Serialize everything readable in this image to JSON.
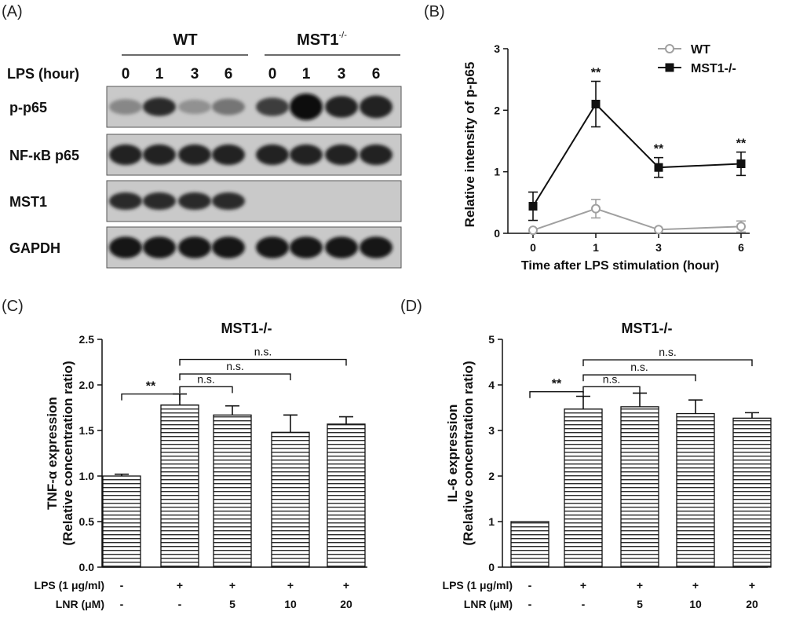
{
  "panel_labels": [
    "(A)",
    "(B)",
    "(C)",
    "(D)"
  ],
  "blot": {
    "groups": [
      "WT",
      "MST1"
    ],
    "group_superscript": "-/-",
    "lps_label": "LPS  (hour)",
    "times": [
      "0",
      "1",
      "3",
      "6",
      "0",
      "1",
      "3",
      "6"
    ],
    "rows": [
      {
        "label": "p-p65",
        "intensity": [
          0.35,
          0.85,
          0.3,
          0.45,
          0.75,
          1.0,
          0.9,
          0.9
        ],
        "height": [
          0.45,
          0.6,
          0.4,
          0.5,
          0.6,
          1.0,
          0.75,
          0.8
        ]
      },
      {
        "label": "NF-κB p65",
        "intensity": [
          0.9,
          0.9,
          0.9,
          0.9,
          0.9,
          0.9,
          0.9,
          0.9
        ],
        "height": [
          0.7,
          0.7,
          0.7,
          0.7,
          0.7,
          0.7,
          0.7,
          0.7
        ]
      },
      {
        "label": "MST1",
        "intensity": [
          0.85,
          0.85,
          0.85,
          0.85,
          0,
          0,
          0,
          0
        ],
        "height": [
          0.55,
          0.55,
          0.55,
          0.55,
          0,
          0,
          0,
          0
        ]
      },
      {
        "label": "GAPDH",
        "intensity": [
          0.95,
          0.95,
          0.95,
          0.95,
          0.95,
          0.95,
          0.95,
          0.95
        ],
        "height": [
          0.75,
          0.75,
          0.75,
          0.75,
          0.75,
          0.75,
          0.75,
          0.75
        ]
      }
    ]
  },
  "chart_data": [
    {
      "panel": "(B)",
      "type": "line",
      "title": "",
      "xlabel": "Time after LPS stimulation (hour)",
      "ylabel": "Relative intensity of p-p65",
      "x": [
        0,
        1,
        3,
        6
      ],
      "xticks": [
        "0",
        "1",
        "3",
        "6"
      ],
      "ylim": [
        0,
        3
      ],
      "yticks": [
        "0",
        "1",
        "2",
        "3"
      ],
      "legend_position": "top-right",
      "series": [
        {
          "name": "WT",
          "values": [
            0.05,
            0.4,
            0.06,
            0.11
          ],
          "errors": [
            0.0,
            0.15,
            0.0,
            0.09
          ],
          "color": "#a0a0a0",
          "marker": "circle-open"
        },
        {
          "name": "MST1-/-",
          "values": [
            0.44,
            2.1,
            1.07,
            1.13
          ],
          "errors": [
            0.23,
            0.37,
            0.16,
            0.19
          ],
          "color": "#111111",
          "marker": "square-filled"
        }
      ],
      "annotations": [
        "**",
        "**",
        "**"
      ],
      "annotation_x": [
        1,
        3,
        6
      ]
    },
    {
      "panel": "(C)",
      "type": "bar",
      "title": "MST1-/-",
      "ylabel": "TNF-α expression",
      "ylabel2": "(Relative concentration ratio)",
      "ylim": [
        0,
        2.5
      ],
      "yticks": [
        "0.0",
        "0.5",
        "1.0",
        "1.5",
        "2.0",
        "2.5"
      ],
      "values": [
        1.0,
        1.78,
        1.67,
        1.48,
        1.57
      ],
      "errors": [
        0.02,
        0.12,
        0.1,
        0.19,
        0.08
      ],
      "row_labels": [
        "LPS (1 μg/ml)",
        "LNR (μM)"
      ],
      "lps": [
        "-",
        "+",
        "+",
        "+",
        "+"
      ],
      "lnr": [
        "-",
        "-",
        "5",
        "10",
        "20"
      ],
      "brackets": [
        {
          "from": 0,
          "to": 1,
          "y": 1.9,
          "label": "**"
        },
        {
          "from": 1,
          "to": 2,
          "y": 1.98,
          "label": "n.s."
        },
        {
          "from": 1,
          "to": 3,
          "y": 2.12,
          "label": "n.s."
        },
        {
          "from": 1,
          "to": 4,
          "y": 2.28,
          "label": "n.s."
        }
      ]
    },
    {
      "panel": "(D)",
      "type": "bar",
      "title": "MST1-/-",
      "ylabel": "IL-6 expression",
      "ylabel2": "(Relative concentration ratio)",
      "ylim": [
        0,
        5
      ],
      "yticks": [
        "0",
        "1",
        "2",
        "3",
        "4",
        "5"
      ],
      "values": [
        1.0,
        3.47,
        3.52,
        3.37,
        3.27
      ],
      "errors": [
        0.0,
        0.28,
        0.3,
        0.3,
        0.12
      ],
      "row_labels": [
        "LPS (1 μg/ml)",
        "LNR (μM)"
      ],
      "lps": [
        "-",
        "+",
        "+",
        "+",
        "+"
      ],
      "lnr": [
        "-",
        "-",
        "5",
        "10",
        "20"
      ],
      "brackets": [
        {
          "from": 0,
          "to": 1,
          "y": 3.85,
          "label": "**"
        },
        {
          "from": 1,
          "to": 2,
          "y": 3.96,
          "label": "n.s."
        },
        {
          "from": 1,
          "to": 3,
          "y": 4.22,
          "label": "n.s."
        },
        {
          "from": 1,
          "to": 4,
          "y": 4.55,
          "label": "n.s."
        }
      ]
    }
  ]
}
